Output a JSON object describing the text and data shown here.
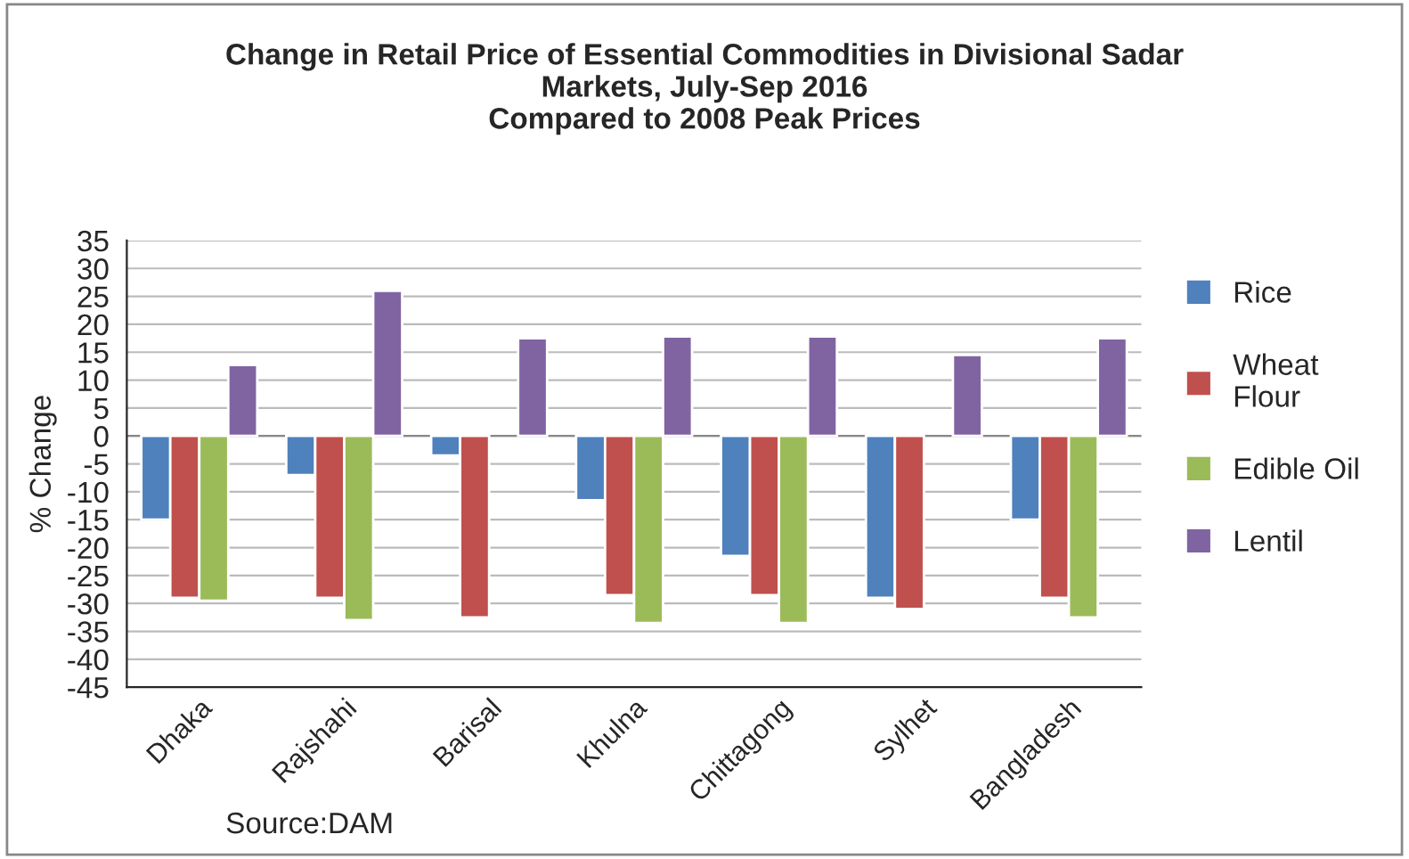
{
  "chart_data": {
    "type": "bar",
    "title": "Change in Retail Price of Essential Commodities in Divisional Sadar\nMarkets, July-Sep 2016\nCompared to 2008 Peak Prices",
    "ylabel": "% Change",
    "categories": [
      "Dhaka",
      "Rajshahi",
      "Barisal",
      "Khulna",
      "Chittagong",
      "Sylhet",
      "Bangladesh"
    ],
    "series": [
      {
        "name": "Rice",
        "color": "#4f81bd",
        "values": [
          -15,
          -7,
          -3.5,
          -11.5,
          -21.5,
          -29,
          -15
        ]
      },
      {
        "name": "Wheat\nFlour",
        "color": "#c0504d",
        "values": [
          -29,
          -29,
          -32.5,
          -28.5,
          -28.5,
          -31,
          -29
        ]
      },
      {
        "name": "Edible Oil",
        "color": "#9bbb59",
        "values": [
          -29.5,
          -33,
          null,
          -33.5,
          -33.5,
          null,
          -32.5
        ]
      },
      {
        "name": "Lentil",
        "color": "#8064a2",
        "values": [
          12.7,
          26,
          17.5,
          17.8,
          17.8,
          14.5,
          17.5
        ]
      }
    ],
    "ylim": [
      -45,
      35
    ],
    "yticks": [
      -45,
      -40,
      -35,
      -30,
      -25,
      -20,
      -15,
      -10,
      -5,
      0,
      5,
      10,
      15,
      20,
      25,
      30,
      35
    ],
    "grid": "y",
    "legend": "right",
    "annotations": [
      "Source:DAM"
    ]
  }
}
